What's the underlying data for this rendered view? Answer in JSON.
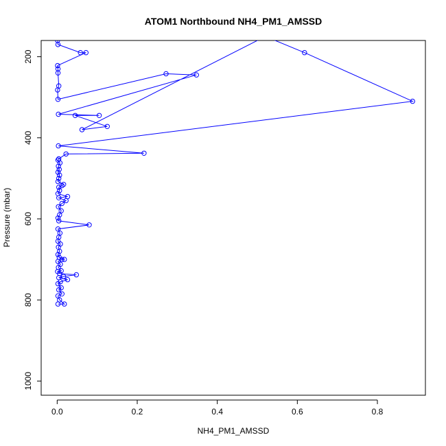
{
  "chart_data": {
    "type": "line",
    "title": "ATOM1 Northbound NH4_PM1_AMSSD",
    "xlabel": "NH4_PM1_AMSSD",
    "ylabel": "Pressure (mbar)",
    "xlim": [
      -0.04,
      0.92
    ],
    "ylim": [
      1035,
      160
    ],
    "y_reversed": true,
    "grid": false,
    "x_ticks": [
      {
        "value": 0.0,
        "label": "0.0"
      },
      {
        "value": 0.2,
        "label": "0.2"
      },
      {
        "value": 0.4,
        "label": "0.4"
      },
      {
        "value": 0.6,
        "label": "0.6"
      },
      {
        "value": 0.8,
        "label": "0.8"
      }
    ],
    "y_ticks": [
      {
        "value": 200,
        "label": "200"
      },
      {
        "value": 400,
        "label": "400"
      },
      {
        "value": 600,
        "label": "600"
      },
      {
        "value": 800,
        "label": "800"
      },
      {
        "value": 1000,
        "label": "1000"
      }
    ],
    "series": [
      {
        "color": "#0000ff",
        "marker": "open-circle",
        "points": [
          [
            0.002,
            810
          ],
          [
            0.018,
            810
          ],
          [
            0.006,
            800
          ],
          [
            0.002,
            790
          ],
          [
            0.012,
            785
          ],
          [
            0.004,
            775
          ],
          [
            0.01,
            770
          ],
          [
            0.002,
            760
          ],
          [
            0.008,
            755
          ],
          [
            0.026,
            750
          ],
          [
            0.004,
            745
          ],
          [
            0.016,
            742
          ],
          [
            0.048,
            738
          ],
          [
            0.006,
            735
          ],
          [
            0.001,
            730
          ],
          [
            0.01,
            728
          ],
          [
            0.003,
            720
          ],
          [
            0.008,
            712
          ],
          [
            0.002,
            705
          ],
          [
            0.012,
            700
          ],
          [
            0.018,
            700
          ],
          [
            0.005,
            695
          ],
          [
            0.002,
            688
          ],
          [
            0.006,
            680
          ],
          [
            0.003,
            670
          ],
          [
            0.008,
            662
          ],
          [
            0.002,
            655
          ],
          [
            0.004,
            645
          ],
          [
            0.007,
            635
          ],
          [
            0.002,
            625
          ],
          [
            0.08,
            615
          ],
          [
            0.004,
            605
          ],
          [
            0.002,
            598
          ],
          [
            0.006,
            590
          ],
          [
            0.01,
            580
          ],
          [
            0.003,
            570
          ],
          [
            0.012,
            562
          ],
          [
            0.022,
            555
          ],
          [
            0.004,
            548
          ],
          [
            0.026,
            545
          ],
          [
            0.002,
            538
          ],
          [
            0.006,
            530
          ],
          [
            0.004,
            522
          ],
          [
            0.012,
            518
          ],
          [
            0.016,
            515
          ],
          [
            0.002,
            508
          ],
          [
            0.004,
            500
          ],
          [
            0.006,
            492
          ],
          [
            0.002,
            485
          ],
          [
            0.005,
            478
          ],
          [
            0.003,
            470
          ],
          [
            0.007,
            462
          ],
          [
            0.002,
            455
          ],
          [
            0.004,
            452
          ],
          [
            0.022,
            440
          ],
          [
            0.217,
            438
          ],
          [
            0.003,
            420
          ],
          [
            0.888,
            310
          ],
          [
            0.618,
            190
          ],
          [
            0.52,
            150
          ],
          [
            0.062,
            380
          ],
          [
            0.125,
            372
          ],
          [
            0.045,
            345
          ],
          [
            0.105,
            345
          ],
          [
            0.003,
            342
          ],
          [
            0.348,
            245
          ],
          [
            0.272,
            242
          ],
          [
            0.002,
            305
          ],
          [
            0.001,
            282
          ],
          [
            0.004,
            272
          ],
          [
            0.002,
            240
          ],
          [
            0.002,
            230
          ],
          [
            0.001,
            222
          ],
          [
            0.072,
            190
          ],
          [
            0.058,
            190
          ],
          [
            0.002,
            170
          ],
          [
            0.001,
            160
          ]
        ]
      }
    ]
  }
}
